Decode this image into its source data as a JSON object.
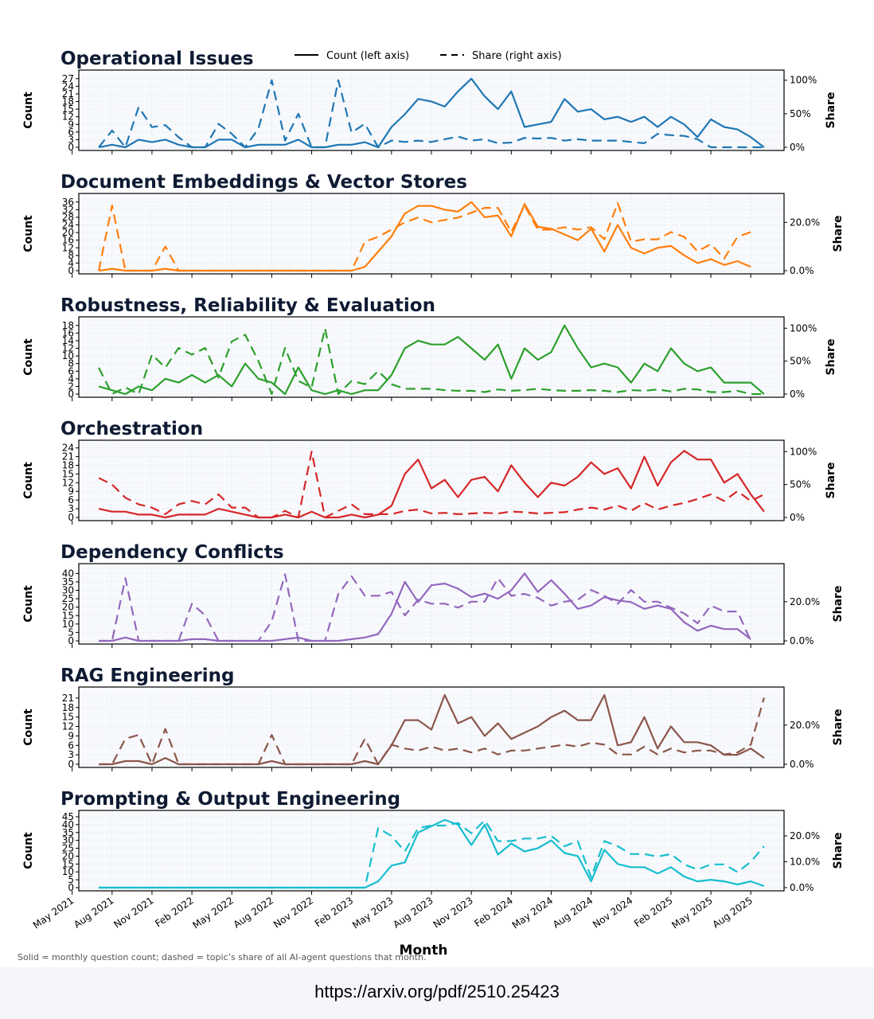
{
  "legend": {
    "count_label": "Count (left axis)",
    "share_label": "Share (right axis)"
  },
  "x_axis_label": "Month",
  "caption": "Solid = monthly question count; dashed = topic’s share of all AI-agent questions that month.",
  "source_url": "https://arxiv.org/pdf/2510.25423",
  "chart_data": {
    "type": "line",
    "x_tick_labels": [
      "May 2021",
      "Aug 2021",
      "Nov 2021",
      "Feb 2022",
      "May 2022",
      "Aug 2022",
      "Nov 2022",
      "Feb 2023",
      "May 2023",
      "Aug 2023",
      "Nov 2023",
      "Feb 2024",
      "May 2024",
      "Aug 2024",
      "Nov 2024",
      "Feb 2025",
      "May 2025",
      "Aug 2025"
    ],
    "x_range_months": [
      -1.5,
      51.5
    ],
    "x_start": "2021-07",
    "panels": [
      {
        "title": "Operational Issues",
        "color": "#1f77b4",
        "ylabel": "Count",
        "y2label": "Share",
        "y_ticks": [
          0,
          3,
          6,
          9,
          12,
          15,
          18,
          21,
          24,
          27
        ],
        "y_max": 28.5,
        "share_ticks": [
          0,
          50,
          100
        ],
        "share_tick_labels": [
          "0%",
          "50%",
          "100%"
        ],
        "share_max": 108,
        "count": [
          0,
          1,
          0,
          3,
          2,
          3,
          1,
          0,
          0,
          3,
          3,
          0,
          1,
          1,
          1,
          3,
          0,
          0,
          1,
          1,
          2,
          0,
          8,
          13,
          19,
          18,
          16,
          22,
          27,
          20,
          15,
          22,
          8,
          9,
          10,
          19,
          14,
          15,
          11,
          12,
          10,
          12,
          8,
          12,
          9,
          4,
          11,
          8,
          7,
          4,
          0
        ],
        "share": [
          0,
          25,
          0,
          60,
          30,
          33,
          15,
          0,
          0,
          35,
          20,
          0,
          28,
          100,
          10,
          50,
          0,
          0,
          100,
          22,
          35,
          0,
          10,
          8,
          10,
          8,
          12,
          16,
          10,
          12,
          6,
          7,
          14,
          13,
          14,
          10,
          12,
          10,
          10,
          10,
          8,
          6,
          20,
          18,
          17,
          12,
          0,
          0,
          0,
          0,
          0
        ]
      },
      {
        "title": "Document Embeddings & Vector Stores",
        "color": "#ff7f0e",
        "ylabel": "Count",
        "y2label": "Share",
        "y_ticks": [
          0,
          4,
          8,
          12,
          16,
          20,
          24,
          28,
          32,
          36
        ],
        "y_max": 38,
        "share_ticks": [
          0,
          20
        ],
        "share_tick_labels": [
          "0.0%",
          "20.0%"
        ],
        "share_max": 30,
        "count": [
          0,
          1,
          0,
          0,
          0,
          1,
          0,
          0,
          0,
          0,
          0,
          0,
          0,
          0,
          0,
          0,
          0,
          0,
          0,
          0,
          2,
          10,
          18,
          30,
          34,
          34,
          32,
          31,
          36,
          28,
          29,
          18,
          35,
          23,
          22,
          19,
          16,
          22,
          10,
          24,
          12,
          9,
          12,
          13,
          8,
          4,
          6,
          3,
          5,
          2
        ],
        "share": [
          0,
          27,
          0,
          0,
          0,
          10,
          0,
          0,
          0,
          0,
          0,
          0,
          0,
          0,
          0,
          0,
          0,
          0,
          0,
          0,
          12,
          14,
          17,
          20,
          22,
          20,
          21,
          22,
          24,
          26,
          26,
          16,
          27,
          17,
          17,
          18,
          17,
          18,
          13,
          28,
          12,
          13,
          13,
          16,
          14,
          8,
          11,
          5,
          14,
          16
        ]
      },
      {
        "title": "Robustness, Reliability & Evaluation",
        "color": "#2ca02c",
        "ylabel": "Count",
        "y2label": "Share",
        "y_ticks": [
          0,
          2,
          4,
          6,
          8,
          10,
          12,
          14,
          16,
          18
        ],
        "y_max": 19,
        "share_ticks": [
          0,
          50,
          100
        ],
        "share_tick_labels": [
          "0%",
          "50%",
          "100%"
        ],
        "share_max": 110,
        "count": [
          2,
          1,
          0,
          2,
          1,
          4,
          3,
          5,
          3,
          5,
          2,
          8,
          4,
          3,
          0,
          7,
          1,
          0,
          1,
          0,
          1,
          1,
          5,
          12,
          14,
          13,
          13,
          15,
          12,
          9,
          13,
          4,
          12,
          9,
          11,
          18,
          12,
          7,
          8,
          7,
          3,
          8,
          6,
          12,
          8,
          6,
          7,
          3,
          3,
          3,
          0
        ],
        "share": [
          40,
          0,
          10,
          0,
          60,
          40,
          70,
          60,
          70,
          25,
          80,
          90,
          50,
          0,
          70,
          20,
          10,
          100,
          0,
          20,
          15,
          35,
          15,
          8,
          8,
          8,
          6,
          5,
          5,
          3,
          7,
          5,
          6,
          8,
          6,
          5,
          5,
          6,
          5,
          3,
          6,
          5,
          7,
          4,
          8,
          7,
          3,
          3,
          5,
          0,
          0
        ]
      },
      {
        "title": "Orchestration",
        "color": "#d62728",
        "ylabel": "Count",
        "y2label": "Share",
        "y_ticks": [
          0,
          3,
          6,
          9,
          12,
          15,
          18,
          21,
          24
        ],
        "y_max": 25,
        "share_ticks": [
          0,
          50,
          100
        ],
        "share_tick_labels": [
          "0%",
          "50%",
          "100%"
        ],
        "share_max": 110,
        "count": [
          3,
          2,
          2,
          1,
          1,
          0,
          1,
          1,
          1,
          3,
          2,
          1,
          0,
          0,
          1,
          0,
          2,
          0,
          0,
          1,
          0,
          1,
          4,
          15,
          20,
          10,
          13,
          7,
          13,
          14,
          9,
          18,
          12,
          7,
          12,
          11,
          14,
          19,
          15,
          17,
          10,
          21,
          11,
          19,
          23,
          20,
          20,
          12,
          15,
          8,
          2
        ],
        "share": [
          60,
          50,
          30,
          20,
          15,
          5,
          20,
          25,
          20,
          35,
          15,
          15,
          0,
          0,
          10,
          0,
          100,
          0,
          10,
          20,
          5,
          5,
          5,
          10,
          12,
          6,
          7,
          5,
          6,
          7,
          6,
          9,
          8,
          6,
          7,
          8,
          12,
          15,
          12,
          18,
          10,
          22,
          12,
          18,
          22,
          28,
          35,
          25,
          40,
          25,
          35
        ]
      },
      {
        "title": "Dependency Conflicts",
        "color": "#9467bd",
        "ylabel": "Count",
        "y2label": "Share",
        "y_ticks": [
          0,
          5,
          10,
          15,
          20,
          25,
          30,
          35,
          40
        ],
        "y_max": 43,
        "share_ticks": [
          0,
          20
        ],
        "share_tick_labels": [
          "0.0%",
          "20.0%"
        ],
        "share_max": 37,
        "count": [
          0,
          0,
          2,
          0,
          0,
          0,
          0,
          1,
          1,
          0,
          0,
          0,
          0,
          0,
          1,
          2,
          0,
          0,
          0,
          1,
          2,
          4,
          16,
          35,
          23,
          33,
          34,
          31,
          26,
          28,
          25,
          30,
          40,
          29,
          36,
          28,
          19,
          21,
          26,
          24,
          23,
          19,
          21,
          19,
          11,
          6,
          9,
          7,
          7,
          1
        ],
        "share": [
          0,
          0,
          32,
          0,
          0,
          0,
          0,
          19,
          13,
          0,
          0,
          0,
          0,
          10,
          34,
          0,
          0,
          0,
          24,
          33,
          23,
          23,
          25,
          13,
          21,
          19,
          19,
          17,
          20,
          20,
          32,
          23,
          24,
          22,
          18,
          20,
          21,
          26,
          23,
          19,
          26,
          20,
          20,
          17,
          14,
          9,
          18,
          15,
          15,
          0
        ]
      },
      {
        "title": "RAG Engineering",
        "color": "#8c564b",
        "ylabel": "Count",
        "y2label": "Share",
        "y_ticks": [
          0,
          3,
          6,
          9,
          12,
          15,
          18,
          21
        ],
        "y_max": 23,
        "share_ticks": [
          0,
          20
        ],
        "share_tick_labels": [
          "0.0%",
          "20.0%"
        ],
        "share_max": 37,
        "count": [
          0,
          0,
          1,
          1,
          0,
          2,
          0,
          0,
          0,
          0,
          0,
          0,
          0,
          1,
          0,
          0,
          0,
          0,
          0,
          0,
          1,
          0,
          6,
          14,
          14,
          11,
          22,
          13,
          15,
          9,
          13,
          8,
          10,
          12,
          15,
          17,
          14,
          14,
          22,
          6,
          7,
          15,
          5,
          12,
          7,
          7,
          6,
          3,
          3,
          5,
          2
        ],
        "share": [
          0,
          0,
          13,
          15,
          0,
          18,
          0,
          0,
          0,
          0,
          0,
          0,
          0,
          15,
          0,
          0,
          0,
          0,
          0,
          0,
          13,
          0,
          10,
          8,
          7,
          9,
          7,
          8,
          6,
          8,
          5,
          7,
          7,
          8,
          9,
          10,
          9,
          11,
          10,
          5,
          5,
          9,
          5,
          8,
          6,
          7,
          7,
          5,
          6,
          10,
          34
        ]
      },
      {
        "title": "Prompting & Output Engineering",
        "color": "#17becf",
        "ylabel": "Count",
        "y2label": "Share",
        "y_ticks": [
          0,
          5,
          10,
          15,
          20,
          25,
          30,
          35,
          40,
          45
        ],
        "y_max": 46,
        "share_ticks": [
          0,
          10,
          20
        ],
        "share_tick_labels": [
          "0.0%",
          "10.0%",
          "20.0%"
        ],
        "share_max": 28,
        "count": [
          0,
          0,
          0,
          0,
          0,
          0,
          0,
          0,
          0,
          0,
          0,
          0,
          0,
          0,
          0,
          0,
          0,
          0,
          0,
          0,
          0,
          4,
          14,
          16,
          35,
          39,
          43,
          40,
          27,
          40,
          21,
          28,
          23,
          25,
          30,
          22,
          20,
          4,
          24,
          15,
          13,
          13,
          9,
          13,
          7,
          4,
          5,
          4,
          2,
          4,
          1
        ],
        "share": [
          0,
          0,
          0,
          0,
          0,
          0,
          0,
          0,
          0,
          0,
          0,
          0,
          0,
          0,
          0,
          0,
          0,
          0,
          0,
          0,
          0,
          23,
          20,
          14,
          23,
          24,
          24,
          25,
          21,
          26,
          18,
          18,
          19,
          19,
          20,
          16,
          18,
          4,
          18,
          16,
          13,
          13,
          12,
          13,
          9,
          7,
          9,
          9,
          6,
          10,
          16
        ]
      }
    ]
  }
}
